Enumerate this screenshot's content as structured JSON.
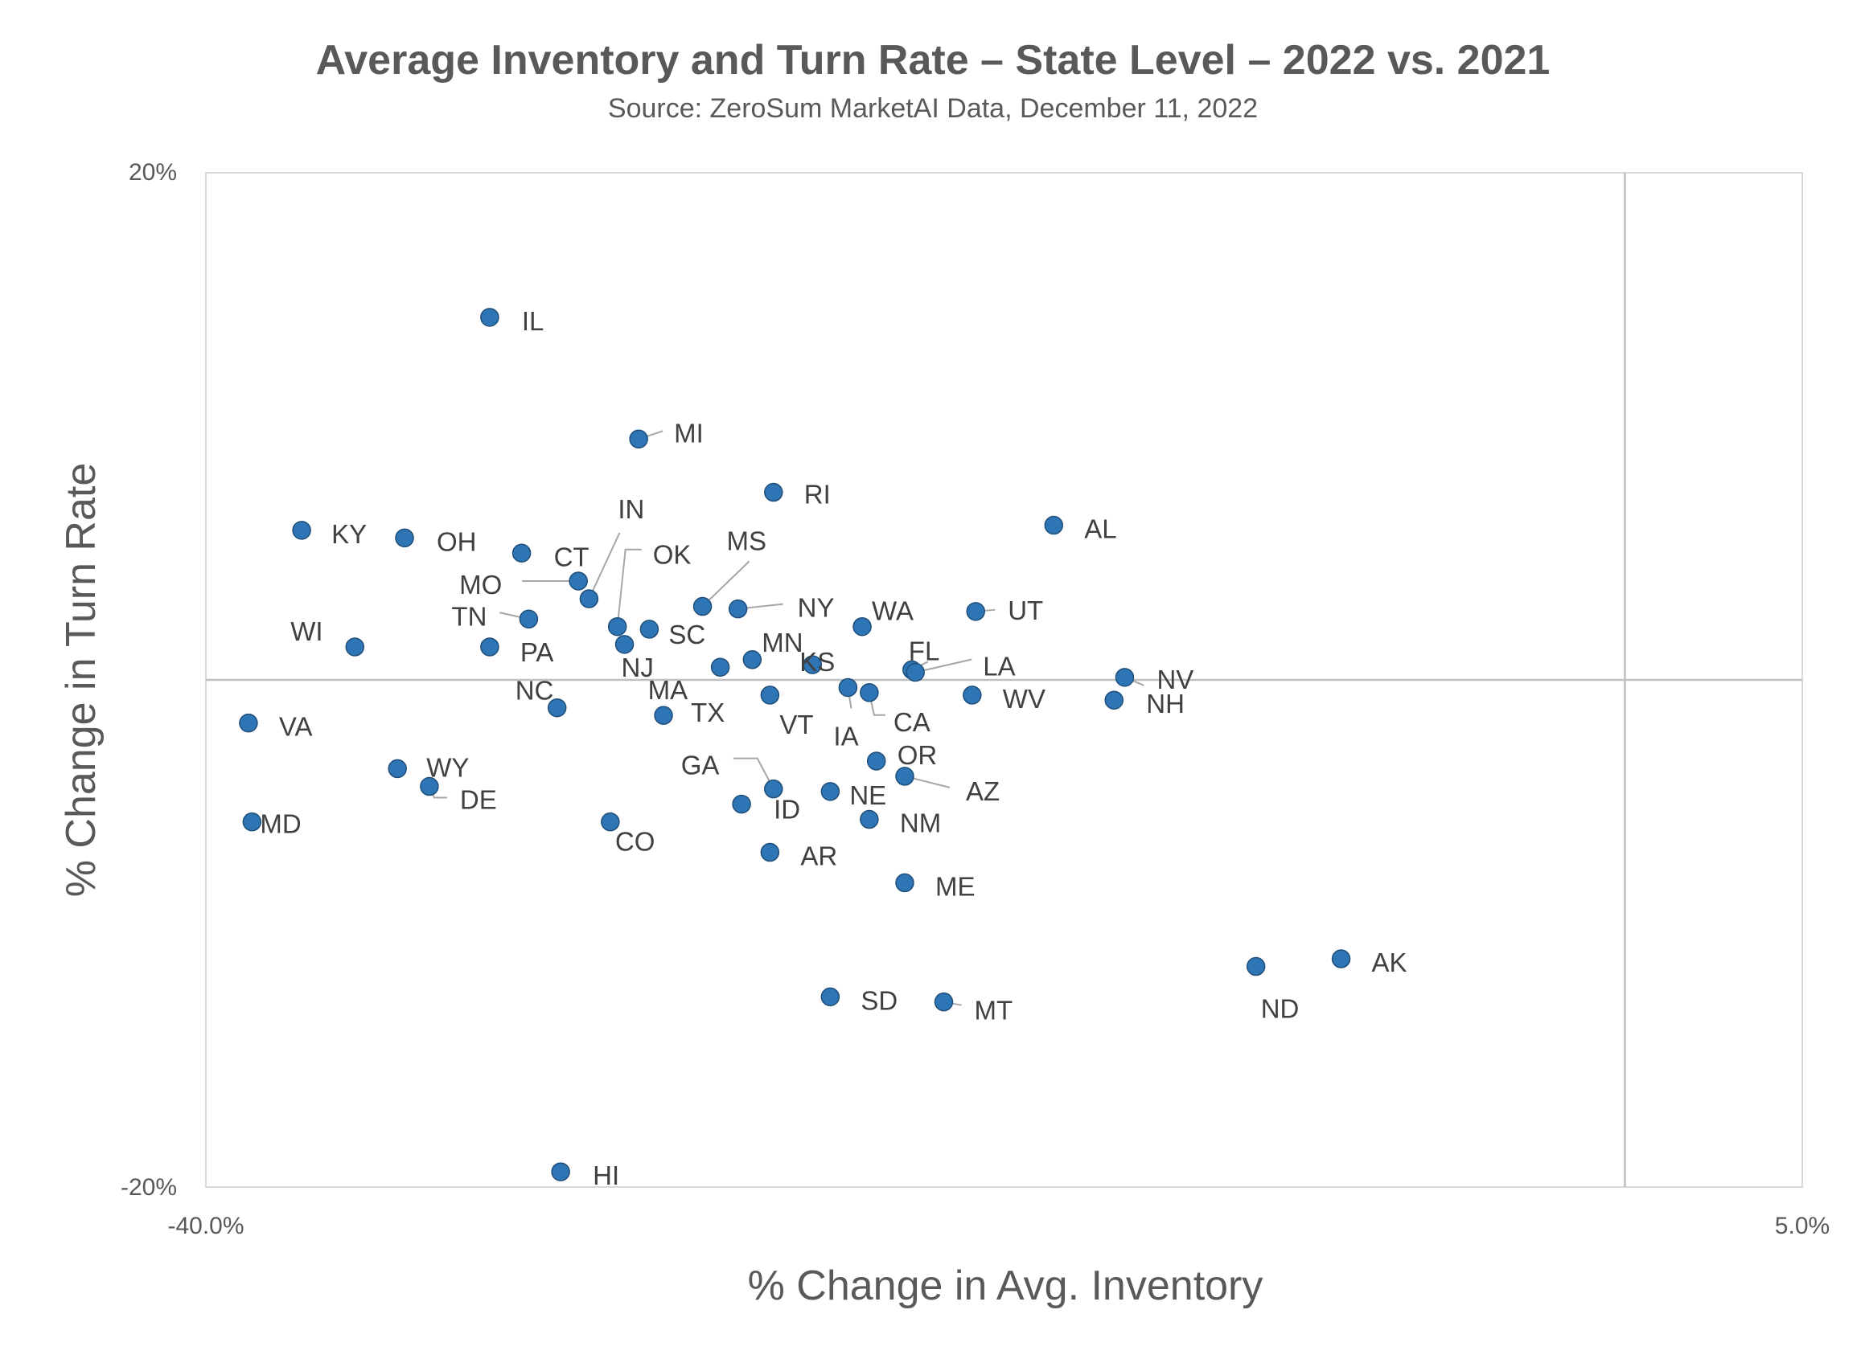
{
  "chart_data": {
    "type": "scatter",
    "title": "Average Inventory and Turn Rate – State Level – 2022 vs. 2021",
    "subtitle": "Source: ZeroSum MarketAI Data, December 11, 2022",
    "xlabel": "% Change in Avg. Inventory",
    "ylabel": "% Change in Turn Rate",
    "xlim": [
      -40,
      5
    ],
    "ylim": [
      -20,
      20
    ],
    "x_ticks": [
      "-40.0%",
      "5.0%"
    ],
    "y_ticks": [
      "20%",
      "-20%"
    ],
    "reference_lines": {
      "x": 0,
      "y": 0
    },
    "grid": false,
    "legend": "none",
    "colors": {
      "point": "#2E75B6",
      "text": "#595959",
      "reference": "#BFBFBF"
    },
    "points": [
      {
        "label": "IL",
        "x": -32.0,
        "y": 14.3
      },
      {
        "label": "MI",
        "x": -27.8,
        "y": 9.5
      },
      {
        "label": "RI",
        "x": -24.0,
        "y": 7.4
      },
      {
        "label": "AL",
        "x": -16.1,
        "y": 6.1
      },
      {
        "label": "KY",
        "x": -37.3,
        "y": 5.9
      },
      {
        "label": "OH",
        "x": -34.4,
        "y": 5.6
      },
      {
        "label": "CT",
        "x": -31.1,
        "y": 5.0
      },
      {
        "label": "MO",
        "x": -29.5,
        "y": 3.9
      },
      {
        "label": "IN",
        "x": -29.2,
        "y": 3.2
      },
      {
        "label": "OK",
        "x": -28.4,
        "y": 2.1
      },
      {
        "label": "SC",
        "x": -27.5,
        "y": 2.0
      },
      {
        "label": "MS",
        "x": -26.0,
        "y": 2.9
      },
      {
        "label": "NY",
        "x": -25.0,
        "y": 2.8
      },
      {
        "label": "WA",
        "x": -21.5,
        "y": 2.1
      },
      {
        "label": "UT",
        "x": -18.3,
        "y": 2.7
      },
      {
        "label": "TN",
        "x": -30.9,
        "y": 2.4
      },
      {
        "label": "WI",
        "x": -35.8,
        "y": 1.3
      },
      {
        "label": "PA",
        "x": -32.0,
        "y": 1.3
      },
      {
        "label": "NJ",
        "x": -28.2,
        "y": 1.4
      },
      {
        "label": "MA",
        "x": -25.5,
        "y": 0.5
      },
      {
        "label": "MN",
        "x": -24.6,
        "y": 0.8
      },
      {
        "label": "KS",
        "x": -22.9,
        "y": 0.6
      },
      {
        "label": "FL",
        "x": -20.1,
        "y": 0.4
      },
      {
        "label": "LA",
        "x": -20.0,
        "y": 0.3
      },
      {
        "label": "NV",
        "x": -14.1,
        "y": 0.1
      },
      {
        "label": "IA",
        "x": -21.9,
        "y": -0.3
      },
      {
        "label": "CA",
        "x": -21.3,
        "y": -0.5
      },
      {
        "label": "VT",
        "x": -24.1,
        "y": -0.6
      },
      {
        "label": "WV",
        "x": -18.4,
        "y": -0.6
      },
      {
        "label": "NH",
        "x": -14.4,
        "y": -0.8
      },
      {
        "label": "NC",
        "x": -30.1,
        "y": -1.1
      },
      {
        "label": "TX",
        "x": -27.1,
        "y": -1.4
      },
      {
        "label": "VA",
        "x": -38.8,
        "y": -1.7
      },
      {
        "label": "OR",
        "x": -21.1,
        "y": -3.2
      },
      {
        "label": "AZ",
        "x": -20.3,
        "y": -3.8
      },
      {
        "label": "WY",
        "x": -34.6,
        "y": -3.5
      },
      {
        "label": "DE",
        "x": -33.7,
        "y": -4.2
      },
      {
        "label": "GA",
        "x": -24.0,
        "y": -4.3
      },
      {
        "label": "NE",
        "x": -22.4,
        "y": -4.4
      },
      {
        "label": "ID",
        "x": -24.9,
        "y": -4.9
      },
      {
        "label": "NM",
        "x": -21.3,
        "y": -5.5
      },
      {
        "label": "MD",
        "x": -38.7,
        "y": -5.6
      },
      {
        "label": "CO",
        "x": -28.6,
        "y": -5.6
      },
      {
        "label": "AR",
        "x": -24.1,
        "y": -6.8
      },
      {
        "label": "ME",
        "x": -20.3,
        "y": -8.0
      },
      {
        "label": "ND",
        "x": -10.4,
        "y": -11.3
      },
      {
        "label": "AK",
        "x": -8.0,
        "y": -11.0
      },
      {
        "label": "SD",
        "x": -22.4,
        "y": -12.5
      },
      {
        "label": "MT",
        "x": -19.2,
        "y": -12.7
      },
      {
        "label": "HI",
        "x": -30.0,
        "y": -19.4
      }
    ]
  }
}
